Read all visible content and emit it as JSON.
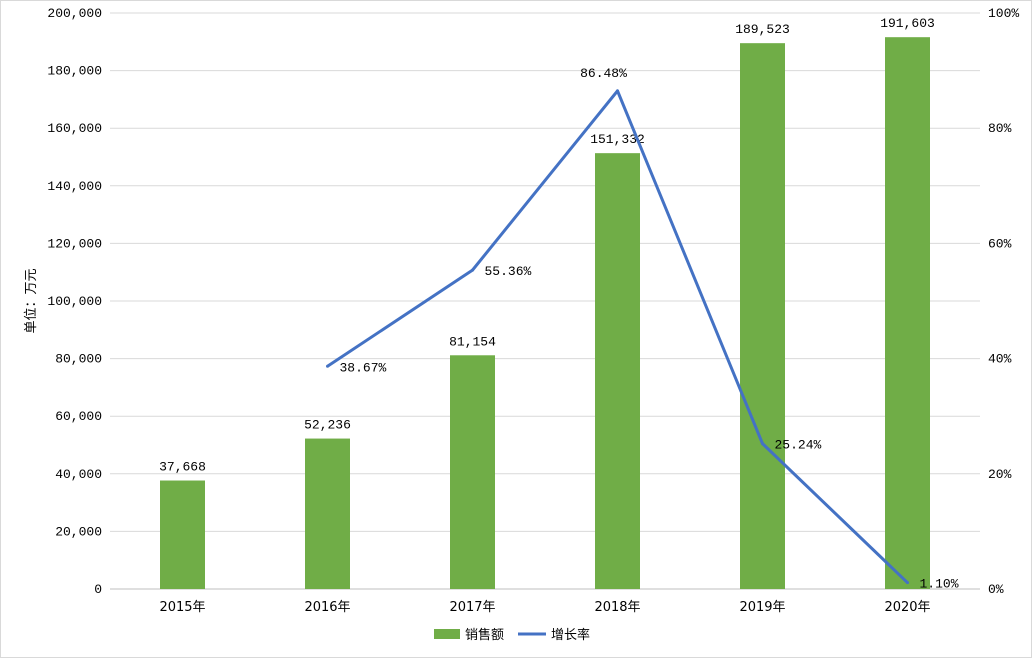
{
  "chart_data": {
    "type": "bar+line",
    "categories": [
      "2015年",
      "2016年",
      "2017年",
      "2018年",
      "2019年",
      "2020年"
    ],
    "series": [
      {
        "name": "销售额",
        "type": "bar",
        "axis": "left",
        "color": "#70ad47",
        "values": [
          37668,
          52236,
          81154,
          151332,
          189523,
          191603
        ],
        "labels": [
          "37,668",
          "52,236",
          "81,154",
          "151,332",
          "189,523",
          "191,603"
        ]
      },
      {
        "name": "增长率",
        "type": "line",
        "axis": "right",
        "color": "#4472c4",
        "values": [
          null,
          38.67,
          55.36,
          86.48,
          25.24,
          1.1
        ],
        "labels": [
          "",
          "38.67%",
          "55.36%",
          "86.48%",
          "25.24%",
          "1.10%"
        ]
      }
    ],
    "ylabel": "单位：万元",
    "ylim": [
      0,
      200000
    ],
    "yticks": [
      "0",
      "20,000",
      "40,000",
      "60,000",
      "80,000",
      "100,000",
      "120,000",
      "140,000",
      "160,000",
      "180,000",
      "200,000"
    ],
    "y2lim": [
      0,
      100
    ],
    "y2ticks": [
      "0%",
      "20%",
      "40%",
      "60%",
      "80%",
      "100%"
    ],
    "grid": true,
    "legend": "bottom"
  }
}
